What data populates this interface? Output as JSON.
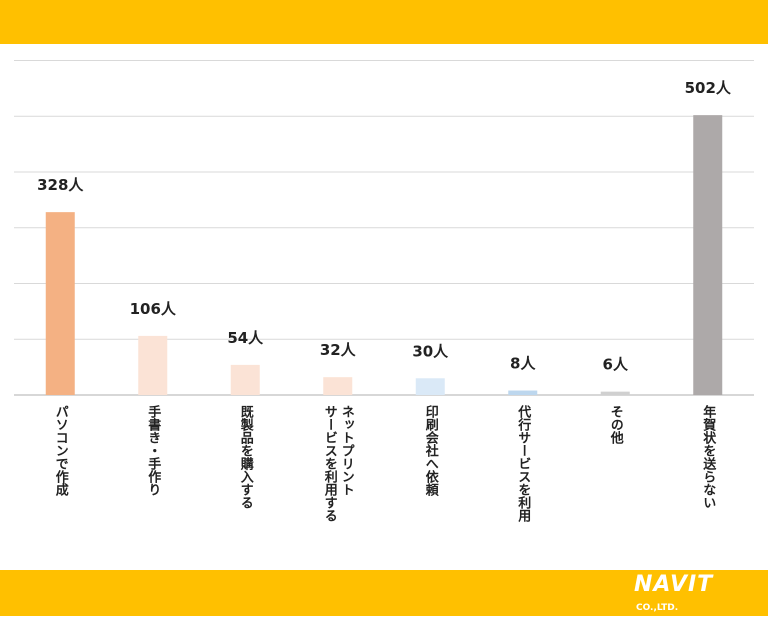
{
  "colors": {
    "banner": "#FFC000",
    "gridline": "#d9d9d9",
    "baseline": "#bfbfbf"
  },
  "chart_data": {
    "type": "bar",
    "categories": [
      "パソコンで作成",
      "手書き・手作り",
      "既製品を購入する",
      "ネットプリントサービスを利用する",
      "印刷会社へ依頼",
      "代行サービスを利用",
      "その他",
      "年賀状を送らない"
    ],
    "category_label_lines": [
      [
        "パソコンで作成"
      ],
      [
        "手書き・手作り"
      ],
      [
        "既製品を購入する"
      ],
      [
        "ネットプリント",
        "サービスを利用する"
      ],
      [
        "印刷会社へ依頼"
      ],
      [
        "代行サービスを利用"
      ],
      [
        "その他"
      ],
      [
        "年賀状を送らない"
      ]
    ],
    "values": [
      328,
      106,
      54,
      32,
      30,
      8,
      6,
      502
    ],
    "value_labels": [
      "328人",
      "106人",
      "54人",
      "32人",
      "30人",
      "8人",
      "6人",
      "502人"
    ],
    "bar_colors": [
      "#F4B183",
      "#FBE3D6",
      "#FBE3D6",
      "#FBE3D6",
      "#DAE9F7",
      "#BDD7EE",
      "#D0D0D0",
      "#ADA9A9"
    ],
    "ylim": [
      0,
      600
    ],
    "y_gridline_step": 100,
    "grid": true,
    "legend": "none"
  },
  "logo": {
    "word": "NAVIT",
    "suffix": "CO.,LTD.",
    "url": "www.navit-j.com"
  }
}
